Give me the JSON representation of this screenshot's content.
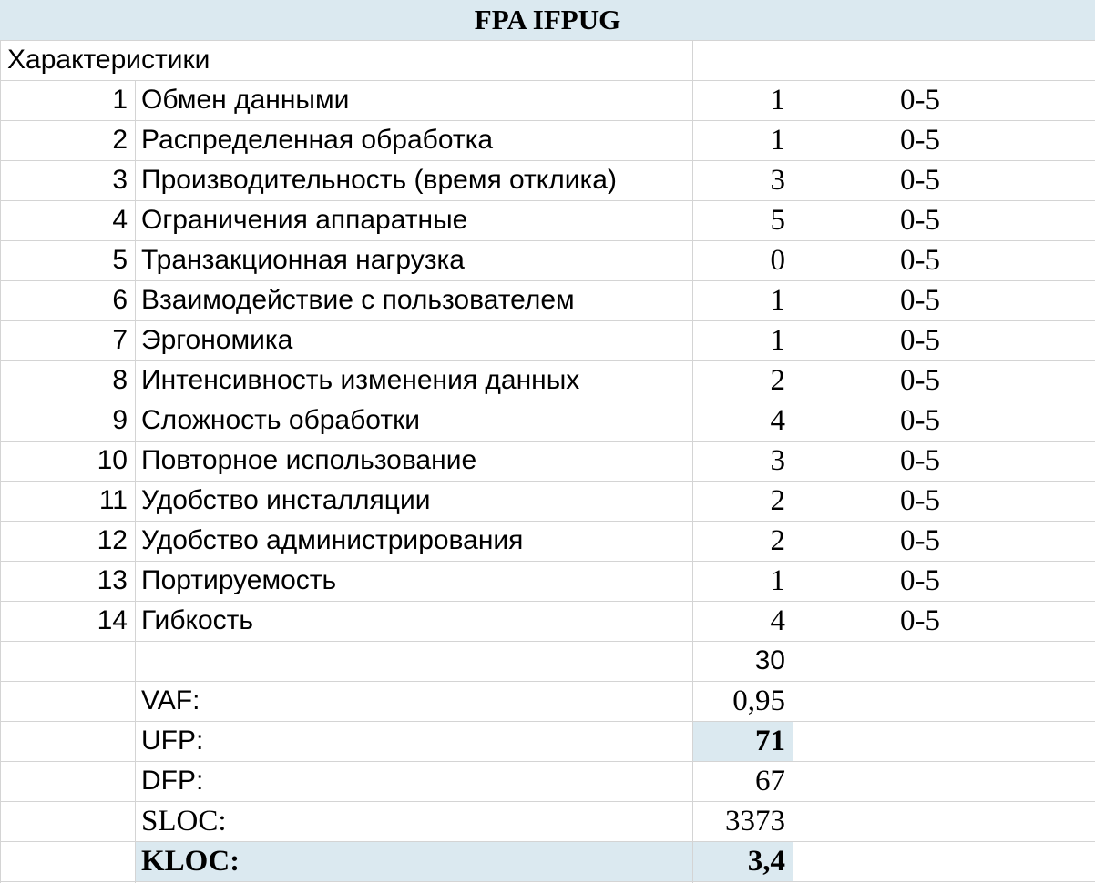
{
  "title": "FPA IFPUG",
  "section_label": "Характеристики",
  "characteristics": [
    {
      "num": "1",
      "label": "Обмен данными",
      "value": "1",
      "range": "0-5"
    },
    {
      "num": "2",
      "label": "Распределенная обработка",
      "value": "1",
      "range": "0-5"
    },
    {
      "num": "3",
      "label": "Производительность (время отклика)",
      "value": "3",
      "range": "0-5"
    },
    {
      "num": "4",
      "label": "Ограничения аппаратные",
      "value": "5",
      "range": "0-5"
    },
    {
      "num": "5",
      "label": "Транзакционная нагрузка",
      "value": "0",
      "range": "0-5"
    },
    {
      "num": "6",
      "label": "Взаимодействие с пользователем",
      "value": "1",
      "range": "0-5"
    },
    {
      "num": "7",
      "label": "Эргономика",
      "value": "1",
      "range": "0-5"
    },
    {
      "num": "8",
      "label": "Интенсивность изменения данных",
      "value": "2",
      "range": "0-5"
    },
    {
      "num": "9",
      "label": "Сложность обработки",
      "value": "4",
      "range": "0-5"
    },
    {
      "num": "10",
      "label": "Повторное использование",
      "value": "3",
      "range": "0-5"
    },
    {
      "num": "11",
      "label": "Удобство инсталляции",
      "value": "2",
      "range": "0-5"
    },
    {
      "num": "12",
      "label": "Удобство администрирования",
      "value": "2",
      "range": "0-5"
    },
    {
      "num": "13",
      "label": "Портируемость",
      "value": "1",
      "range": "0-5"
    },
    {
      "num": "14",
      "label": "Гибкость",
      "value": "4",
      "range": "0-5"
    }
  ],
  "sum": "30",
  "summary": {
    "vaf": {
      "label": "VAF:",
      "value": "0,95"
    },
    "ufp": {
      "label": "UFP:",
      "value": "71"
    },
    "dfp": {
      "label": "DFP:",
      "value": "67"
    },
    "sloc": {
      "label": "SLOC:",
      "value": "3373"
    },
    "kloc": {
      "label": "KLOC:",
      "value": "3,4"
    }
  },
  "colors": {
    "highlight": "#dbe9f0",
    "grid": "#d4d4d4"
  }
}
